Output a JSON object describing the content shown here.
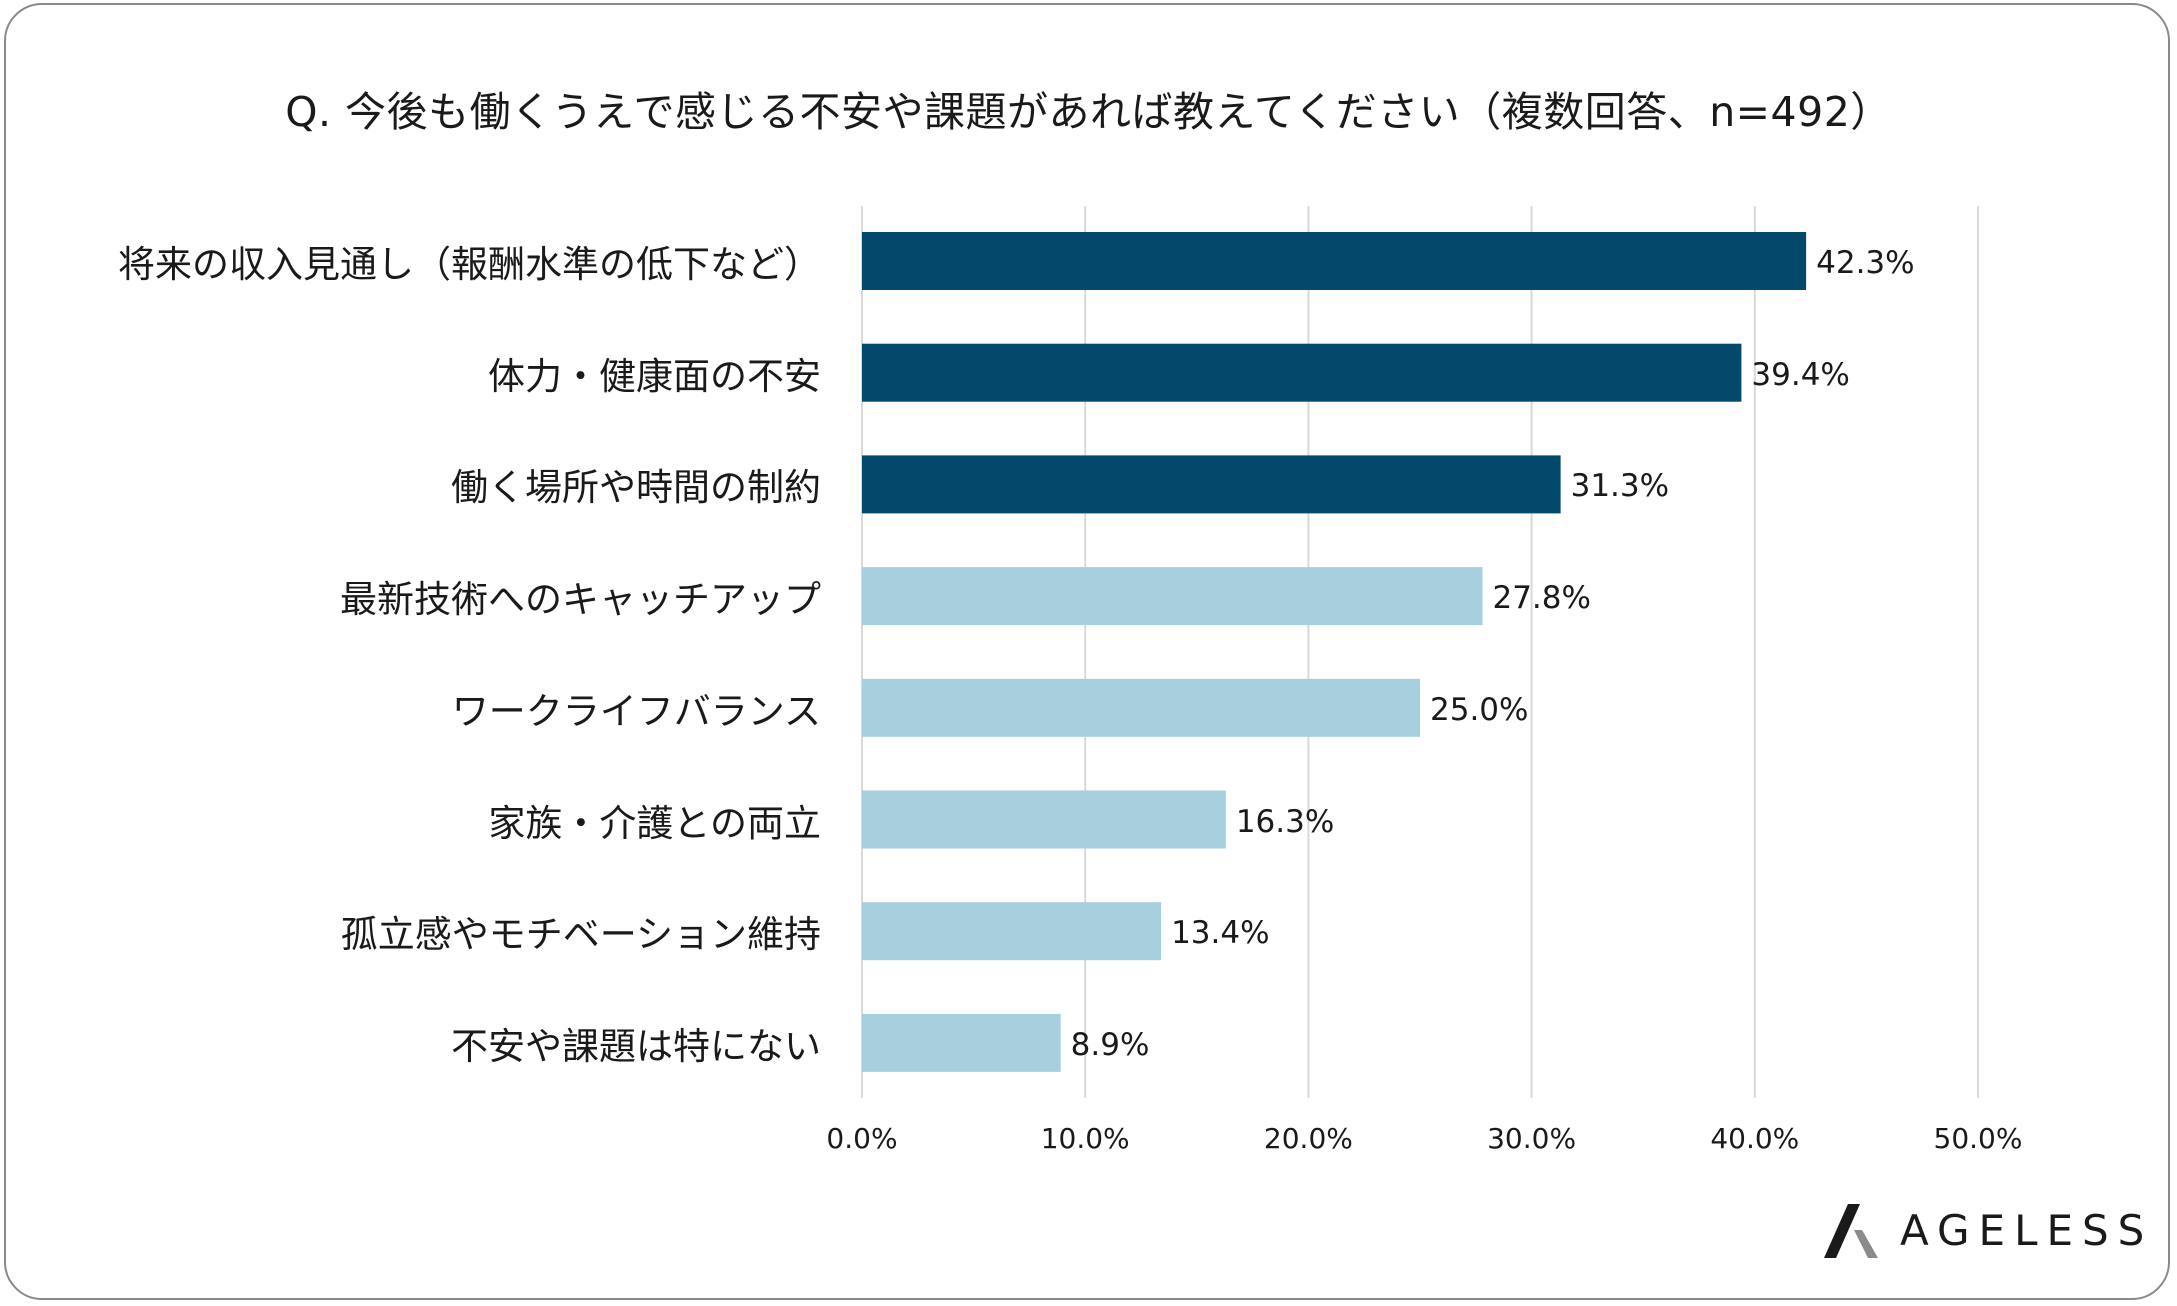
{
  "chart_data": {
    "type": "bar",
    "orientation": "horizontal",
    "title": "Q. 今後も働くうえで感じる不安や課題があれば教えてください（複数回答、n=492）",
    "categories": [
      "将来の収入見通し（報酬水準の低下など）",
      "体力・健康面の不安",
      "働く場所や時間の制約",
      "最新技術へのキャッチアップ",
      "ワークライフバランス",
      "家族・介護との両立",
      "孤立感やモチベーション維持",
      "不安や課題は特にない"
    ],
    "values": [
      42.3,
      39.4,
      31.3,
      27.8,
      25.0,
      16.3,
      13.4,
      8.9
    ],
    "value_labels": [
      "42.3%",
      "39.4%",
      "31.3%",
      "27.8%",
      "25.0%",
      "16.3%",
      "13.4%",
      "8.9%"
    ],
    "xlim": [
      0,
      50
    ],
    "x_ticks": [
      "0.0%",
      "10.0%",
      "20.0%",
      "30.0%",
      "40.0%",
      "50.0%"
    ],
    "grid": "vertical",
    "xlabel": "",
    "ylabel": "",
    "highlight_count": 3,
    "colors": {
      "highlight": "#02496b",
      "normal": "#a8cfdd",
      "grid": "#d9d9d9"
    }
  },
  "brand": {
    "name": "AGELESS",
    "logo_icon": "ageless-logo-mark"
  }
}
